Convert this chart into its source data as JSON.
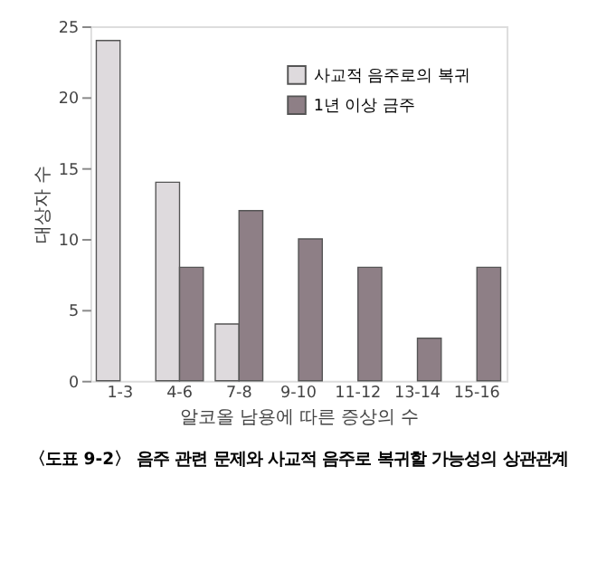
{
  "chart_data": {
    "type": "bar",
    "xlabel": "알코올 남용에 따른 증상의 수",
    "ylabel": "대상자 수",
    "categories": [
      "1-3",
      "4-6",
      "7-8",
      "9-10",
      "11-12",
      "13-14",
      "15-16"
    ],
    "series": [
      {
        "name": "사교적 음주로의 복귀",
        "color": "#dedadd",
        "values": [
          24,
          14,
          4,
          null,
          null,
          null,
          null
        ]
      },
      {
        "name": "1년 이상 금주",
        "color": "#8e7f86",
        "values": [
          null,
          8,
          12,
          10,
          8,
          3,
          8
        ]
      }
    ],
    "ylim": [
      0,
      25
    ],
    "yticks": [
      0,
      5,
      10,
      15,
      20,
      25
    ],
    "grid": false,
    "legend": "top right",
    "annotations": [
      "〈도표 9-2〉 음주 관련 문제와 사교적 음주로 복귀할 가능성의 상관관계"
    ]
  }
}
